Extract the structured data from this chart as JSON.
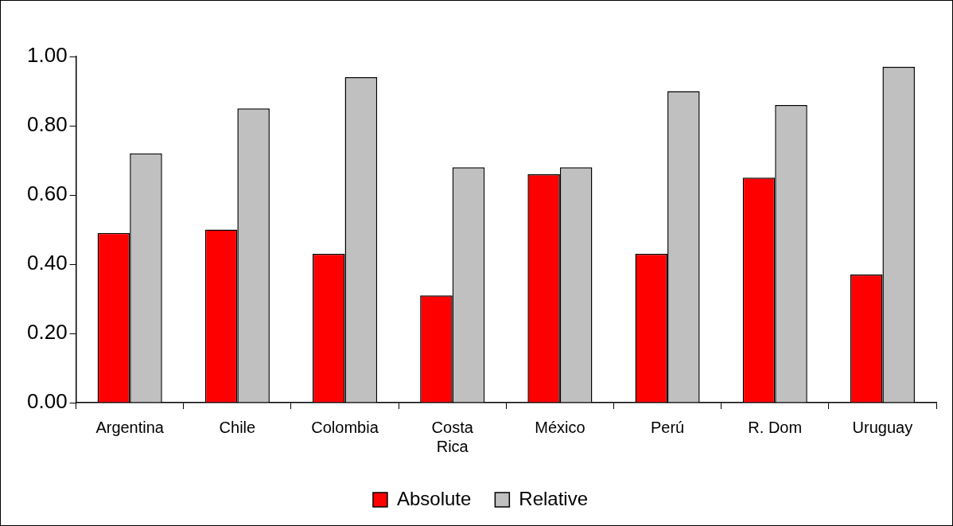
{
  "chart_data": {
    "type": "bar",
    "categories": [
      "Argentina",
      "Chile",
      "Colombia",
      "Costa Rica",
      "México",
      "Perú",
      "R. Dom",
      "Uruguay"
    ],
    "series": [
      {
        "name": "Absolute",
        "color": "#ff0000",
        "values": [
          0.49,
          0.5,
          0.43,
          0.31,
          0.66,
          0.43,
          0.65,
          0.37
        ]
      },
      {
        "name": "Relative",
        "color": "#c0c0c0",
        "values": [
          0.72,
          0.85,
          0.94,
          0.68,
          0.68,
          0.9,
          0.86,
          0.97
        ]
      }
    ],
    "ylim": [
      0,
      1
    ],
    "yticks": [
      {
        "value": 0,
        "label": "0.00"
      },
      {
        "value": 0.2,
        "label": "0.20"
      },
      {
        "value": 0.4,
        "label": "0.40"
      },
      {
        "value": 0.6,
        "label": "0.60"
      },
      {
        "value": 0.8,
        "label": "0.80"
      },
      {
        "value": 1,
        "label": "1.00"
      }
    ],
    "grid": false,
    "legend": "bottom"
  }
}
